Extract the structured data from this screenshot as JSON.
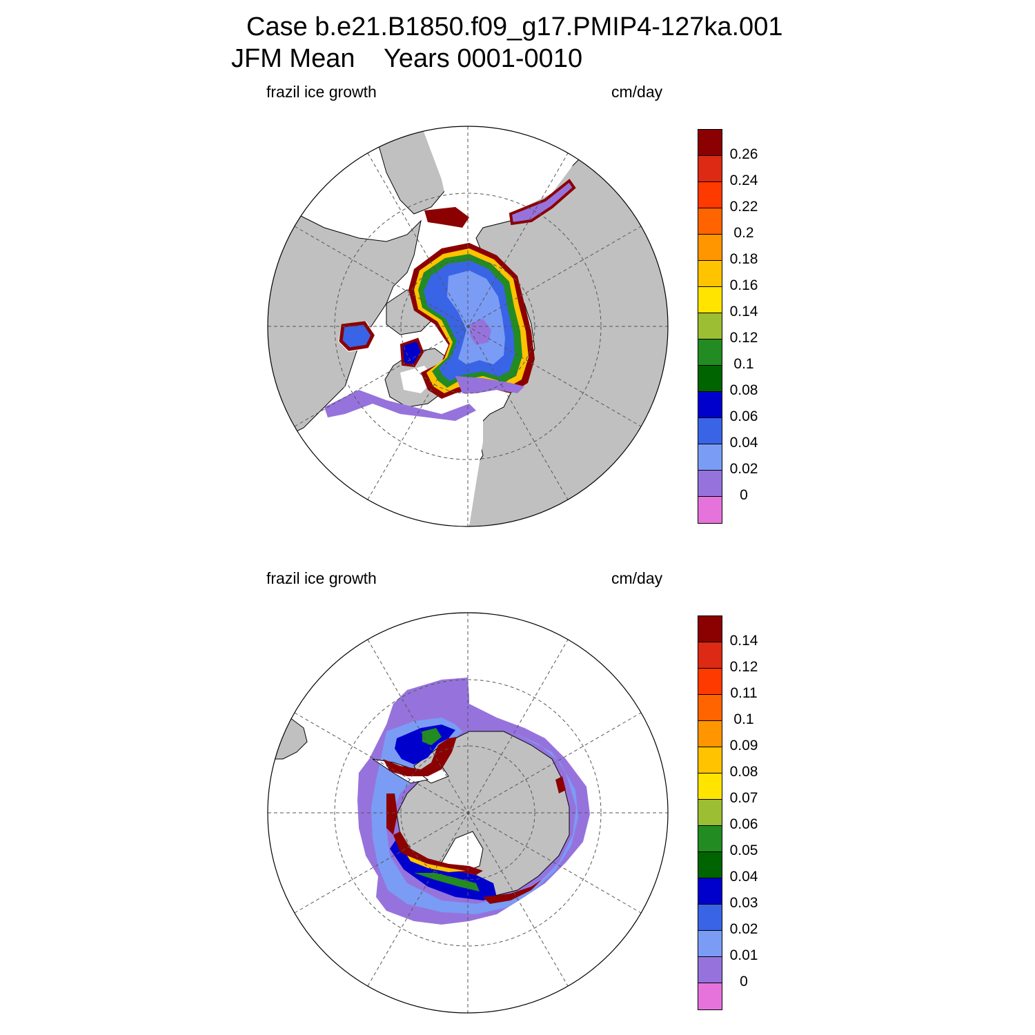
{
  "title_line1": "Case b.e21.B1850.f09_g17.PMIP4-127ka.001",
  "title_line2": "JFM Mean    Years 0001-0010",
  "panels": [
    {
      "left_label": "frazil ice growth",
      "right_label": "cm/day",
      "hemisphere": "north",
      "colorbar": {
        "levels": [
          "0.26",
          "0.24",
          "0.22",
          "0.2",
          "0.18",
          "0.16",
          "0.14",
          "0.12",
          "0.1",
          "0.08",
          "0.06",
          "0.04",
          "0.02",
          "0"
        ],
        "colors": [
          "#8b0000",
          "#dc2a14",
          "#ff3a00",
          "#ff6400",
          "#ff9600",
          "#ffc300",
          "#ffe400",
          "#9bbe32",
          "#228b22",
          "#006400",
          "#0000cd",
          "#3a64e6",
          "#7a9cf5",
          "#9673dc",
          "#e673dc"
        ]
      }
    },
    {
      "left_label": "frazil ice growth",
      "right_label": "cm/day",
      "hemisphere": "south",
      "colorbar": {
        "levels": [
          "0.14",
          "0.12",
          "0.11",
          "0.1",
          "0.09",
          "0.08",
          "0.07",
          "0.06",
          "0.05",
          "0.04",
          "0.03",
          "0.02",
          "0.01",
          "0"
        ],
        "colors": [
          "#8b0000",
          "#dc2a14",
          "#ff3a00",
          "#ff6400",
          "#ff9600",
          "#ffc300",
          "#ffe400",
          "#9bbe32",
          "#228b22",
          "#006400",
          "#0000cd",
          "#3a64e6",
          "#7a9cf5",
          "#9673dc",
          "#e673dc"
        ]
      }
    }
  ],
  "colors": {
    "land": "#c0c0c0",
    "grid": "#555555"
  }
}
